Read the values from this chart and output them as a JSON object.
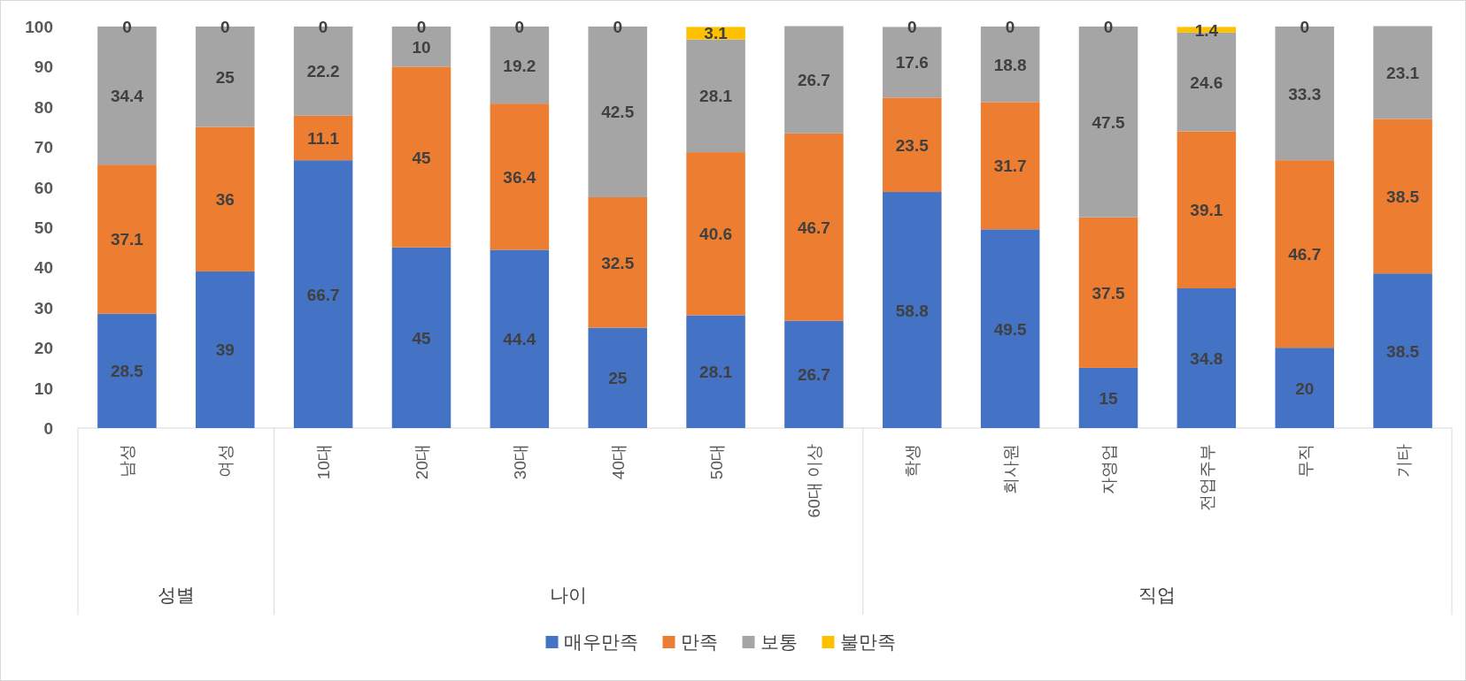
{
  "chart_data": {
    "type": "bar",
    "stacked": true,
    "categories": [
      "남성",
      "여성",
      "10대",
      "20대",
      "30대",
      "40대",
      "50대",
      "60대 이상",
      "학생",
      "회사원",
      "자영업",
      "전업주부",
      "무직",
      "기타"
    ],
    "series": [
      {
        "name": "매우만족",
        "color": "#4472c4",
        "values": [
          28.5,
          39,
          66.7,
          45,
          44.4,
          25,
          28.1,
          26.7,
          58.8,
          49.5,
          15,
          34.8,
          20,
          38.5
        ]
      },
      {
        "name": "만족",
        "color": "#ed7d31",
        "values": [
          37.1,
          36,
          11.1,
          45,
          36.4,
          32.5,
          40.6,
          46.7,
          23.5,
          31.7,
          37.5,
          39.1,
          46.7,
          38.5
        ]
      },
      {
        "name": "보통",
        "color": "#a5a5a5",
        "values": [
          34.4,
          25,
          22.2,
          10,
          19.2,
          42.5,
          28.1,
          26.7,
          17.6,
          18.8,
          47.5,
          24.6,
          33.3,
          23.1
        ]
      },
      {
        "name": "불만족",
        "color": "#ffc000",
        "values": [
          0,
          0,
          0,
          0,
          0,
          0,
          3.1,
          null,
          0,
          0,
          0,
          1.4,
          0,
          null
        ]
      }
    ],
    "data_labels": true,
    "ylim": [
      0,
      100
    ],
    "yticks": [
      0,
      10,
      20,
      30,
      40,
      50,
      60,
      70,
      80,
      90,
      100
    ],
    "grid": false,
    "legend": "bottom",
    "annotations": [
      "성별",
      "나이",
      "직업"
    ]
  }
}
